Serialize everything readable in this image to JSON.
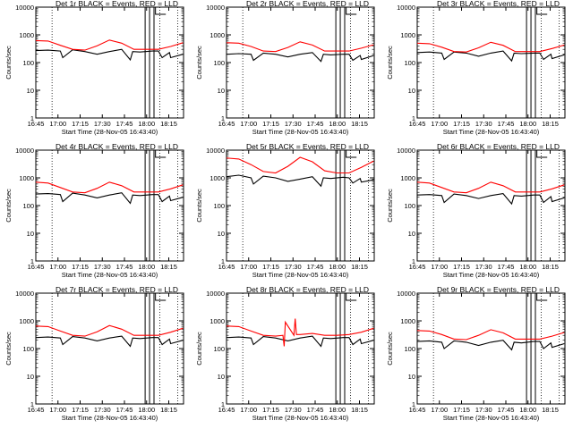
{
  "chart_data": [
    {
      "type": "line",
      "title": "Det 1r BLACK = Events, RED = LLD",
      "xlabel": "Start Time (28-Nov-05 16:43:40)",
      "ylabel": "Counts/sec",
      "yscale": "log",
      "ylim": [
        1,
        10000
      ],
      "xticks": [
        "16:45",
        "17:00",
        "17:15",
        "17:30",
        "17:45",
        "18:00",
        "18:15"
      ],
      "yticks": [
        "1",
        "10",
        "100",
        "1000",
        "10000"
      ],
      "series": [
        {
          "color": "#000000",
          "x": [
            0,
            10,
            20,
            22,
            30,
            40,
            50,
            60,
            70,
            77,
            79,
            85,
            95,
            100,
            103,
            109,
            110,
            120
          ],
          "y": [
            270,
            280,
            260,
            150,
            290,
            250,
            200,
            250,
            300,
            125,
            250,
            240,
            260,
            260,
            150,
            230,
            150,
            200
          ]
        },
        {
          "color": "#ff0000",
          "x": [
            0,
            10,
            20,
            30,
            40,
            50,
            60,
            70,
            80,
            90,
            100,
            110,
            120
          ],
          "y": [
            620,
            600,
            420,
            300,
            280,
            400,
            650,
            500,
            300,
            300,
            300,
            380,
            520
          ]
        }
      ]
    },
    {
      "type": "line",
      "title": "Det 2r BLACK = Events, RED = LLD",
      "xlabel": "Start Time (28-Nov-05 16:43:40)",
      "ylabel": "Counts/sec",
      "yscale": "log",
      "ylim": [
        1,
        10000
      ],
      "xticks": [
        "16:45",
        "17:00",
        "17:15",
        "17:30",
        "17:45",
        "18:00",
        "18:15"
      ],
      "yticks": [
        "1",
        "10",
        "100",
        "1000",
        "10000"
      ],
      "series": [
        {
          "color": "#000000",
          "x": [
            0,
            10,
            20,
            22,
            30,
            40,
            50,
            60,
            70,
            77,
            79,
            85,
            95,
            100,
            103,
            109,
            110,
            120
          ],
          "y": [
            200,
            210,
            200,
            120,
            220,
            200,
            160,
            200,
            230,
            110,
            200,
            190,
            200,
            200,
            120,
            180,
            130,
            180
          ]
        },
        {
          "color": "#ff0000",
          "x": [
            0,
            10,
            20,
            30,
            40,
            50,
            60,
            70,
            80,
            90,
            100,
            110,
            120
          ],
          "y": [
            520,
            500,
            380,
            260,
            250,
            350,
            560,
            430,
            260,
            260,
            260,
            330,
            440
          ]
        }
      ]
    },
    {
      "type": "line",
      "title": "Det 3r BLACK = Events, RED = LLD",
      "xlabel": "Start Time (28-Nov-05 16:43:40)",
      "ylabel": "Counts/sec",
      "yscale": "log",
      "ylim": [
        1,
        10000
      ],
      "xticks": [
        "16:45",
        "17:00",
        "17:15",
        "17:30",
        "17:45",
        "18:00",
        "18:15"
      ],
      "yticks": [
        "1",
        "10",
        "100",
        "1000",
        "10000"
      ],
      "series": [
        {
          "color": "#000000",
          "x": [
            0,
            10,
            20,
            22,
            30,
            40,
            50,
            60,
            70,
            77,
            79,
            85,
            95,
            100,
            103,
            109,
            110,
            120
          ],
          "y": [
            230,
            240,
            220,
            130,
            240,
            220,
            170,
            220,
            260,
            115,
            220,
            210,
            220,
            220,
            130,
            200,
            140,
            190
          ]
        },
        {
          "color": "#ff0000",
          "x": [
            0,
            10,
            20,
            30,
            40,
            50,
            60,
            70,
            80,
            90,
            100,
            110,
            120
          ],
          "y": [
            500,
            480,
            360,
            250,
            240,
            340,
            540,
            420,
            250,
            250,
            250,
            320,
            430
          ]
        }
      ]
    },
    {
      "type": "line",
      "title": "Det 4r BLACK = Events, RED = LLD",
      "xlabel": "Start Time (28-Nov-05 16:43:40)",
      "ylabel": "Counts/sec",
      "yscale": "log",
      "ylim": [
        1,
        10000
      ],
      "xticks": [
        "16:45",
        "17:00",
        "17:15",
        "17:30",
        "17:45",
        "18:00",
        "18:15"
      ],
      "yticks": [
        "1",
        "10",
        "100",
        "1000",
        "10000"
      ],
      "series": [
        {
          "color": "#000000",
          "x": [
            0,
            10,
            20,
            22,
            30,
            40,
            50,
            60,
            70,
            77,
            79,
            85,
            95,
            100,
            103,
            109,
            110,
            120
          ],
          "y": [
            260,
            270,
            250,
            140,
            280,
            240,
            190,
            240,
            290,
            120,
            240,
            230,
            250,
            250,
            140,
            220,
            150,
            200
          ]
        },
        {
          "color": "#ff0000",
          "x": [
            0,
            10,
            20,
            30,
            40,
            50,
            60,
            70,
            80,
            90,
            100,
            110,
            120
          ],
          "y": [
            700,
            650,
            450,
            310,
            290,
            420,
            700,
            520,
            310,
            310,
            310,
            400,
            560
          ]
        }
      ]
    },
    {
      "type": "line",
      "title": "Det 5r BLACK = Events, RED = LLD",
      "xlabel": "Start Time (28-Nov-05 16:43:40)",
      "ylabel": "Counts/sec",
      "yscale": "log",
      "ylim": [
        1,
        10000
      ],
      "xticks": [
        "16:45",
        "17:00",
        "17:15",
        "17:30",
        "17:45",
        "18:00",
        "18:15"
      ],
      "yticks": [
        "1",
        "10",
        "100",
        "1000",
        "10000"
      ],
      "series": [
        {
          "color": "#000000",
          "x": [
            0,
            10,
            20,
            22,
            30,
            40,
            50,
            60,
            70,
            77,
            79,
            85,
            95,
            100,
            103,
            109,
            110,
            120
          ],
          "y": [
            1100,
            1250,
            1000,
            600,
            1150,
            1000,
            750,
            900,
            1100,
            500,
            1000,
            950,
            1050,
            1000,
            650,
            950,
            700,
            850
          ]
        },
        {
          "color": "#ff0000",
          "x": [
            0,
            10,
            20,
            30,
            40,
            50,
            60,
            70,
            80,
            90,
            100,
            110,
            120
          ],
          "y": [
            5200,
            4800,
            3000,
            1700,
            1500,
            2600,
            5500,
            3800,
            1800,
            1500,
            1500,
            2400,
            4000
          ]
        }
      ]
    },
    {
      "type": "line",
      "title": "Det 6r BLACK = Events, RED = LLD",
      "xlabel": "Start Time (28-Nov-05 16:43:40)",
      "ylabel": "Counts/sec",
      "yscale": "log",
      "ylim": [
        1,
        10000
      ],
      "xticks": [
        "16:45",
        "17:00",
        "17:15",
        "17:30",
        "17:45",
        "18:00",
        "18:15"
      ],
      "yticks": [
        "1",
        "10",
        "100",
        "1000",
        "10000"
      ],
      "series": [
        {
          "color": "#000000",
          "x": [
            0,
            10,
            20,
            22,
            30,
            40,
            50,
            60,
            70,
            77,
            79,
            85,
            95,
            100,
            103,
            109,
            110,
            120
          ],
          "y": [
            240,
            250,
            230,
            130,
            260,
            230,
            180,
            230,
            270,
            115,
            230,
            220,
            240,
            240,
            130,
            210,
            140,
            190
          ]
        },
        {
          "color": "#ff0000",
          "x": [
            0,
            10,
            20,
            30,
            40,
            50,
            60,
            70,
            80,
            90,
            100,
            110,
            120
          ],
          "y": [
            700,
            650,
            450,
            310,
            290,
            420,
            700,
            520,
            310,
            310,
            310,
            400,
            560
          ]
        }
      ]
    },
    {
      "type": "line",
      "title": "Det 7r BLACK = Events, RED = LLD",
      "xlabel": "Start Time (28-Nov-05 16:43:40)",
      "ylabel": "Counts/sec",
      "yscale": "log",
      "ylim": [
        1,
        10000
      ],
      "xticks": [
        "16:45",
        "17:00",
        "17:15",
        "17:30",
        "17:45",
        "18:00",
        "18:15"
      ],
      "yticks": [
        "1",
        "10",
        "100",
        "1000",
        "10000"
      ],
      "series": [
        {
          "color": "#000000",
          "x": [
            0,
            10,
            20,
            22,
            30,
            40,
            50,
            60,
            70,
            77,
            79,
            85,
            95,
            100,
            103,
            109,
            110,
            120
          ],
          "y": [
            250,
            260,
            240,
            140,
            270,
            240,
            190,
            240,
            280,
            120,
            240,
            230,
            250,
            250,
            140,
            220,
            150,
            200
          ]
        },
        {
          "color": "#ff0000",
          "x": [
            0,
            10,
            20,
            30,
            40,
            50,
            60,
            70,
            80,
            90,
            100,
            110,
            120
          ],
          "y": [
            650,
            620,
            430,
            300,
            280,
            400,
            680,
            500,
            300,
            300,
            300,
            390,
            540
          ]
        }
      ]
    },
    {
      "type": "line",
      "title": "Det 8r BLACK = Events, RED = LLD",
      "xlabel": "Start Time (28-Nov-05 16:43:40)",
      "ylabel": "Counts/sec",
      "yscale": "log",
      "ylim": [
        1,
        10000
      ],
      "xticks": [
        "16:45",
        "17:00",
        "17:15",
        "17:30",
        "17:45",
        "18:00",
        "18:15"
      ],
      "yticks": [
        "1",
        "10",
        "100",
        "1000",
        "10000"
      ],
      "series": [
        {
          "color": "#000000",
          "x": [
            0,
            10,
            20,
            22,
            30,
            40,
            50,
            60,
            70,
            77,
            79,
            85,
            95,
            100,
            103,
            109,
            110,
            120
          ],
          "y": [
            250,
            260,
            240,
            140,
            270,
            240,
            190,
            240,
            280,
            120,
            240,
            230,
            250,
            250,
            140,
            220,
            150,
            200
          ]
        },
        {
          "color": "#ff0000",
          "x": [
            0,
            10,
            20,
            30,
            40,
            46,
            47,
            48,
            55,
            56,
            57,
            60,
            70,
            80,
            90,
            100,
            110,
            120
          ],
          "y": [
            650,
            620,
            430,
            300,
            280,
            300,
            120,
            900,
            300,
            1200,
            320,
            320,
            350,
            300,
            300,
            320,
            390,
            540
          ]
        }
      ]
    },
    {
      "type": "line",
      "title": "Det 9r BLACK = Events, RED = LLD",
      "xlabel": "Start Time (28-Nov-05 16:43:40)",
      "ylabel": "Counts/sec",
      "yscale": "log",
      "ylim": [
        1,
        10000
      ],
      "xticks": [
        "16:45",
        "17:00",
        "17:15",
        "17:30",
        "17:45",
        "18:00",
        "18:15"
      ],
      "yticks": [
        "1",
        "10",
        "100",
        "1000",
        "10000"
      ],
      "series": [
        {
          "color": "#000000",
          "x": [
            0,
            10,
            20,
            22,
            30,
            40,
            50,
            60,
            70,
            77,
            79,
            85,
            95,
            100,
            103,
            109,
            110,
            120
          ],
          "y": [
            180,
            190,
            170,
            100,
            190,
            170,
            130,
            170,
            200,
            90,
            170,
            160,
            180,
            180,
            100,
            160,
            110,
            150
          ]
        },
        {
          "color": "#ff0000",
          "x": [
            0,
            10,
            20,
            30,
            40,
            50,
            60,
            70,
            80,
            90,
            100,
            110,
            120
          ],
          "y": [
            450,
            430,
            320,
            220,
            210,
            300,
            480,
            370,
            220,
            220,
            220,
            280,
            380
          ]
        }
      ]
    }
  ]
}
